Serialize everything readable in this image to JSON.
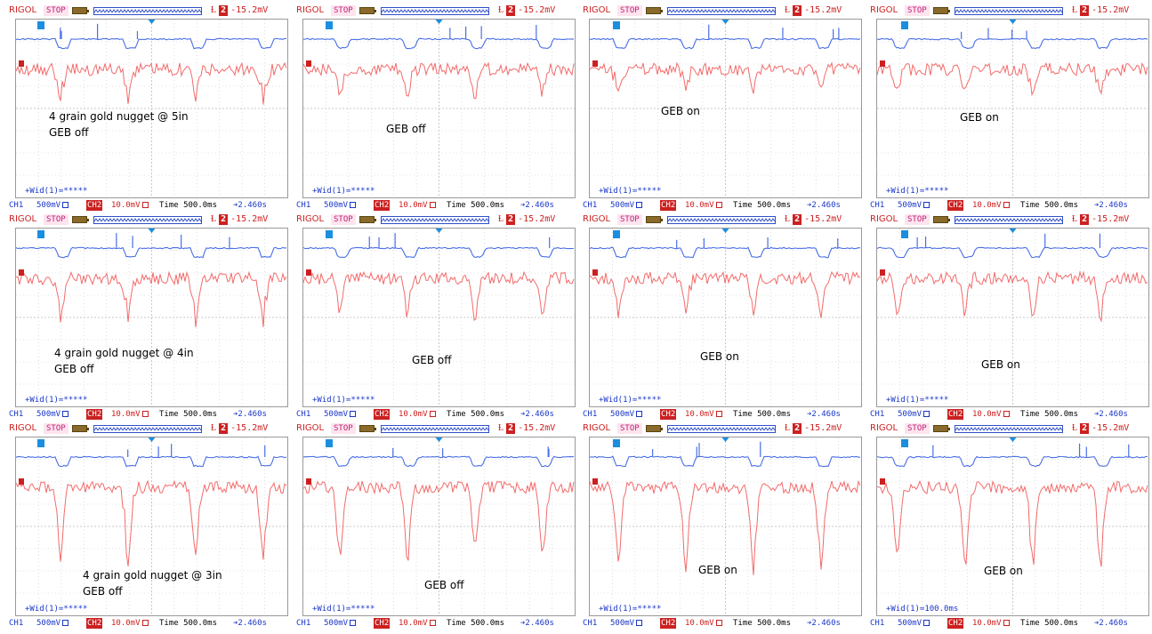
{
  "header": {
    "brand": "RIGOL",
    "state": "STOP",
    "trigger_icon": "Ɫ",
    "trigger_source": "2",
    "trigger_level": "-15.2mV"
  },
  "footer": {
    "ch1_label": "CH1",
    "ch1_scale": "500mV",
    "ch2_label": "CH2",
    "ch2_scale": "10.0mV",
    "timebase": "Time 500.0ms",
    "trigger_offset": "➔2.460s"
  },
  "colors": {
    "ch1": "#4a6ee6",
    "ch2": "#f26b6b",
    "grid": "#c8c8c8",
    "brand": "#cc2020"
  },
  "panels": [
    {
      "note_lines": [
        "4 grain gold nugget @ 5in",
        "GEB off"
      ],
      "measure": "+Wid(1)=*****"
    },
    {
      "note_lines": [
        "GEB off"
      ],
      "measure": "+Wid(1)=*****"
    },
    {
      "note_lines": [
        "GEB on"
      ],
      "measure": "+Wid(1)=*****"
    },
    {
      "note_lines": [
        "GEB on"
      ],
      "measure": "+Wid(1)=*****"
    },
    {
      "note_lines": [
        "4 grain gold nugget @ 4in",
        "GEB off"
      ],
      "measure": "+Wid(1)=*****"
    },
    {
      "note_lines": [
        "GEB off"
      ],
      "measure": "+Wid(1)=*****"
    },
    {
      "note_lines": [
        "GEB on"
      ],
      "measure": "+Wid(1)=*****"
    },
    {
      "note_lines": [
        "GEB on"
      ],
      "measure": "+Wid(1)=*****"
    },
    {
      "note_lines": [
        "4 grain gold nugget @ 3in",
        "GEB off"
      ],
      "measure": "+Wid(1)=*****"
    },
    {
      "note_lines": [
        "GEB off"
      ],
      "measure": "+Wid(1)=*****"
    },
    {
      "note_lines": [
        "GEB on"
      ],
      "measure": "+Wid(1)=*****"
    },
    {
      "note_lines": [
        "GEB on"
      ],
      "measure": "+Wid(1)=100.0ms"
    }
  ]
}
